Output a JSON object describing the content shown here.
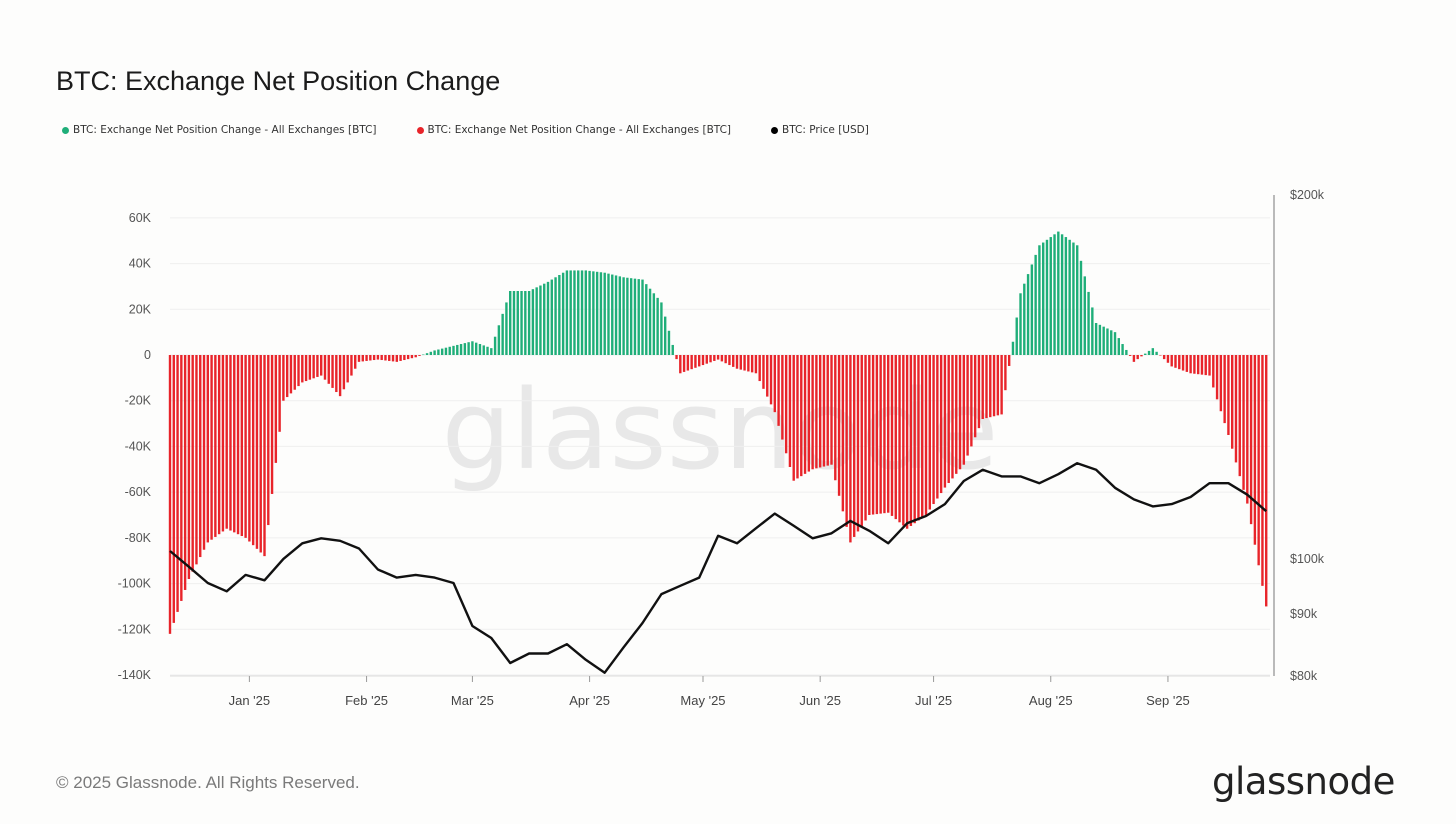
{
  "title": "BTC: Exchange Net Position Change",
  "legend": [
    {
      "label": "BTC: Exchange Net Position Change - All Exchanges [BTC]",
      "color": "#1fae79"
    },
    {
      "label": "BTC: Exchange Net Position Change - All Exchanges [BTC]",
      "color": "#e8242a"
    },
    {
      "label": "BTC: Price [USD]",
      "color": "#000000"
    }
  ],
  "footer": "© 2025 Glassnode. All Rights Reserved.",
  "brand": "glassnode",
  "watermark": "glassnode",
  "chart_data": {
    "type": "bar",
    "left_axis": {
      "ticks": [
        "60K",
        "40K",
        "20K",
        "0",
        "-20K",
        "-40K",
        "-60K",
        "-80K",
        "-100K",
        "-120K",
        "-140K"
      ],
      "ylim": [
        -140000,
        65000
      ]
    },
    "right_axis": {
      "scale": "log",
      "ticks": [
        "$200k",
        "$100k",
        "$90k",
        "$80k"
      ],
      "ylim": [
        80000,
        200000
      ]
    },
    "x_ticks": [
      "Jan '25",
      "Feb '25",
      "Mar '25",
      "Apr '25",
      "May '25",
      "Jun '25",
      "Jul '25",
      "Aug '25",
      "Sep '25"
    ],
    "x_range": [
      "2024-12-11",
      "2025-09-28"
    ],
    "grid": true,
    "legend_position": "top-left",
    "series": [
      {
        "name": "BTC: Exchange Net Position Change - All Exchanges [BTC]",
        "color_positive": "#1fae79",
        "color_negative": "#e8242a",
        "dates": [
          "2024-12-11",
          "2024-12-16",
          "2024-12-21",
          "2024-12-26",
          "2024-12-31",
          "2025-01-05",
          "2025-01-10",
          "2025-01-15",
          "2025-01-20",
          "2025-01-25",
          "2025-01-30",
          "2025-02-04",
          "2025-02-09",
          "2025-02-14",
          "2025-02-19",
          "2025-02-24",
          "2025-03-01",
          "2025-03-06",
          "2025-03-11",
          "2025-03-16",
          "2025-03-21",
          "2025-03-26",
          "2025-03-31",
          "2025-04-05",
          "2025-04-10",
          "2025-04-15",
          "2025-04-20",
          "2025-04-25",
          "2025-04-30",
          "2025-05-05",
          "2025-05-10",
          "2025-05-15",
          "2025-05-20",
          "2025-05-25",
          "2025-05-30",
          "2025-06-04",
          "2025-06-09",
          "2025-06-14",
          "2025-06-19",
          "2025-06-24",
          "2025-06-29",
          "2025-07-04",
          "2025-07-09",
          "2025-07-14",
          "2025-07-19",
          "2025-07-24",
          "2025-07-29",
          "2025-08-03",
          "2025-08-08",
          "2025-08-13",
          "2025-08-18",
          "2025-08-23",
          "2025-08-28",
          "2025-09-02",
          "2025-09-07",
          "2025-09-12",
          "2025-09-17",
          "2025-09-22",
          "2025-09-27"
        ],
        "values": [
          -122000,
          -98000,
          -82000,
          -76000,
          -80000,
          -88000,
          -20000,
          -12000,
          -9000,
          -18000,
          -3000,
          -2000,
          -3000,
          -1000,
          2000,
          4000,
          6000,
          3000,
          28000,
          28000,
          32000,
          37000,
          37000,
          36000,
          34000,
          33000,
          23000,
          -8000,
          -5000,
          -2000,
          -6000,
          -8000,
          -25000,
          -55000,
          -50000,
          -48000,
          -82000,
          -70000,
          -69000,
          -76000,
          -70000,
          -58000,
          -48000,
          -28000,
          -26000,
          27000,
          48000,
          54000,
          48000,
          14000,
          10000,
          -3000,
          3000,
          -5000,
          -8000,
          -9000,
          -35000,
          -65000,
          -110000
        ]
      },
      {
        "name": "BTC: Price [USD]",
        "color": "#000000",
        "dates": [
          "2024-12-11",
          "2024-12-16",
          "2024-12-21",
          "2024-12-26",
          "2024-12-31",
          "2025-01-05",
          "2025-01-10",
          "2025-01-15",
          "2025-01-20",
          "2025-01-25",
          "2025-01-30",
          "2025-02-04",
          "2025-02-09",
          "2025-02-14",
          "2025-02-19",
          "2025-02-24",
          "2025-03-01",
          "2025-03-06",
          "2025-03-11",
          "2025-03-16",
          "2025-03-21",
          "2025-03-26",
          "2025-03-31",
          "2025-04-05",
          "2025-04-10",
          "2025-04-15",
          "2025-04-20",
          "2025-04-25",
          "2025-04-30",
          "2025-05-05",
          "2025-05-10",
          "2025-05-15",
          "2025-05-20",
          "2025-05-25",
          "2025-05-30",
          "2025-06-04",
          "2025-06-09",
          "2025-06-14",
          "2025-06-19",
          "2025-06-24",
          "2025-06-29",
          "2025-07-04",
          "2025-07-09",
          "2025-07-14",
          "2025-07-19",
          "2025-07-24",
          "2025-07-29",
          "2025-08-03",
          "2025-08-08",
          "2025-08-13",
          "2025-08-18",
          "2025-08-23",
          "2025-08-28",
          "2025-09-02",
          "2025-09-07",
          "2025-09-12",
          "2025-09-17",
          "2025-09-22",
          "2025-09-27"
        ],
        "values": [
          101500,
          98500,
          95500,
          94000,
          97000,
          96000,
          100000,
          103000,
          104000,
          103500,
          102000,
          98000,
          96500,
          97000,
          96500,
          95500,
          88000,
          86000,
          82000,
          83500,
          83500,
          85000,
          82500,
          80500,
          84500,
          88500,
          93500,
          95000,
          96500,
          104500,
          103000,
          106000,
          109000,
          106500,
          104000,
          105000,
          107500,
          105500,
          103000,
          107000,
          108500,
          111000,
          116000,
          118500,
          117000,
          117000,
          115500,
          117500,
          120000,
          118500,
          114500,
          112000,
          110500,
          111000,
          112500,
          115500,
          115500,
          113000,
          109500
        ]
      }
    ]
  }
}
